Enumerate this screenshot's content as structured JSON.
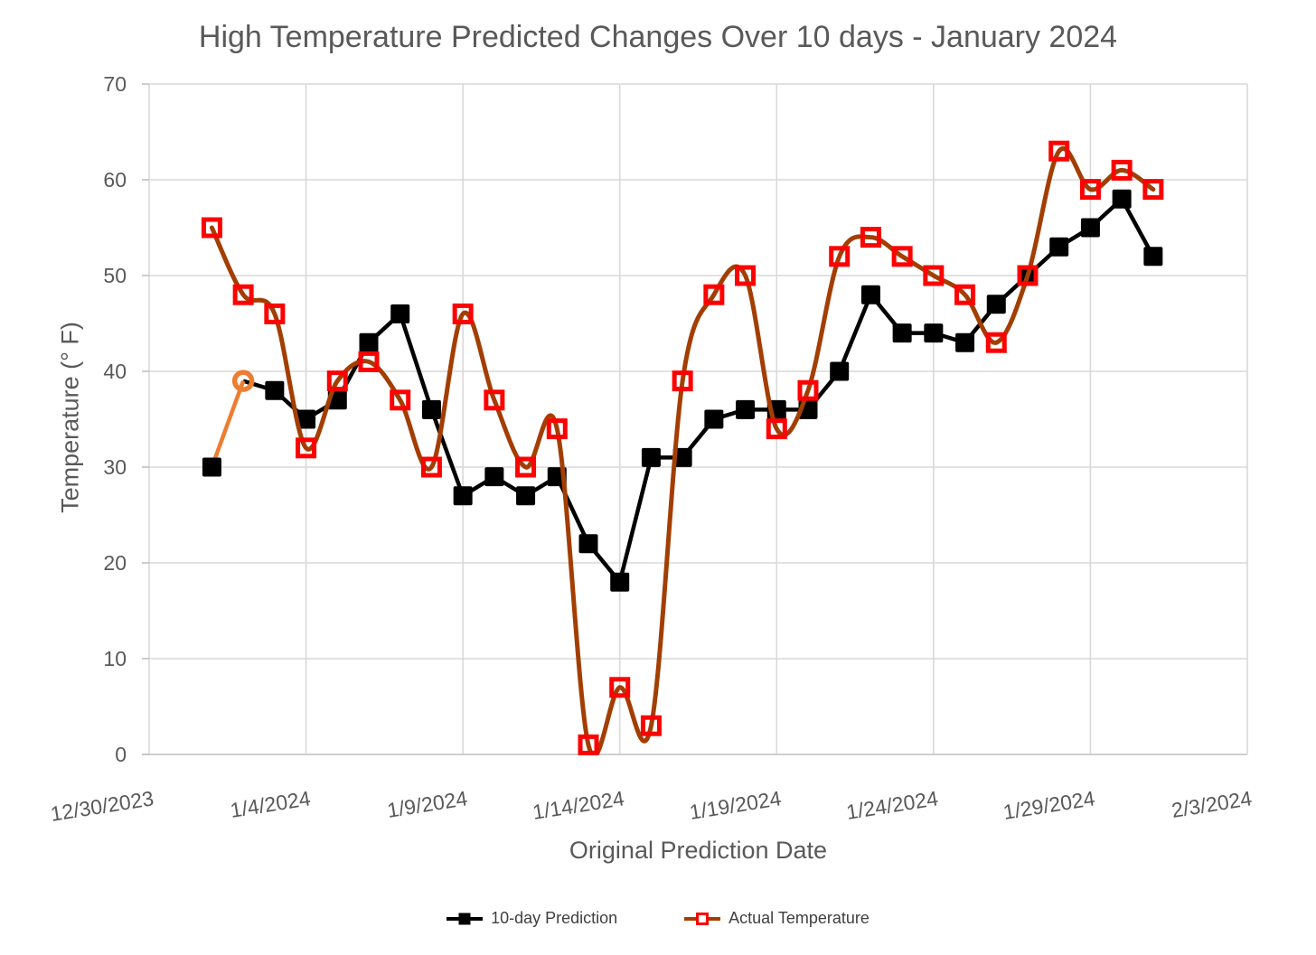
{
  "chart_data": {
    "type": "line",
    "title": "High Temperature Predicted Changes Over 10 days - January 2024",
    "xlabel": "Original Prediction Date",
    "ylabel": "Temperature (° F)",
    "ylim": [
      0,
      70
    ],
    "yticks": [
      0,
      10,
      20,
      30,
      40,
      50,
      60,
      70
    ],
    "xlim": [
      "12/30/2023",
      "2/3/2024"
    ],
    "xtick_labels": [
      "12/30/2023",
      "1/4/2024",
      "1/9/2024",
      "1/14/2024",
      "1/19/2024",
      "1/24/2024",
      "1/29/2024",
      "2/3/2024"
    ],
    "grid": true,
    "legend_position": "bottom",
    "x_dates": [
      "1/1/2024",
      "1/2/2024",
      "1/3/2024",
      "1/4/2024",
      "1/5/2024",
      "1/6/2024",
      "1/7/2024",
      "1/8/2024",
      "1/9/2024",
      "1/10/2024",
      "1/11/2024",
      "1/12/2024",
      "1/13/2024",
      "1/14/2024",
      "1/15/2024",
      "1/16/2024",
      "1/17/2024",
      "1/18/2024",
      "1/19/2024",
      "1/20/2024",
      "1/21/2024",
      "1/22/2024",
      "1/23/2024",
      "1/24/2024",
      "1/25/2024",
      "1/26/2024",
      "1/27/2024",
      "1/28/2024",
      "1/29/2024",
      "1/30/2024",
      "1/31/2024"
    ],
    "series": [
      {
        "name": "10-day Prediction",
        "marker": "filled-square",
        "line_color": "#000000",
        "marker_color": "#000000",
        "smooth": false,
        "values": [
          30,
          39,
          38,
          35,
          37,
          43,
          46,
          36,
          27,
          29,
          27,
          29,
          22,
          18,
          31,
          31,
          35,
          36,
          36,
          36,
          40,
          48,
          44,
          44,
          43,
          47,
          50,
          53,
          55,
          58,
          52
        ]
      },
      {
        "name": "Actual Temperature",
        "marker": "open-square",
        "line_color": "#A33E03",
        "marker_color": "#FF0000",
        "smooth": true,
        "values": [
          55,
          48,
          46,
          32,
          39,
          41,
          37,
          30,
          46,
          37,
          30,
          34,
          1,
          7,
          3,
          39,
          48,
          50,
          34,
          38,
          52,
          54,
          52,
          50,
          48,
          43,
          50,
          63,
          59,
          61,
          59
        ]
      }
    ],
    "highlight_point": {
      "series": "10-day Prediction",
      "date": "1/2/2024",
      "index": 1,
      "value": 39,
      "marker": "open-circle",
      "color": "#ED7D31",
      "note": "first segment and 1/2 marker drawn in orange"
    },
    "colors": {
      "grid": "#D9D9D9",
      "axis_line": "#BFBFBF",
      "tick_text": "#595959",
      "legend_text": "#404040"
    }
  }
}
